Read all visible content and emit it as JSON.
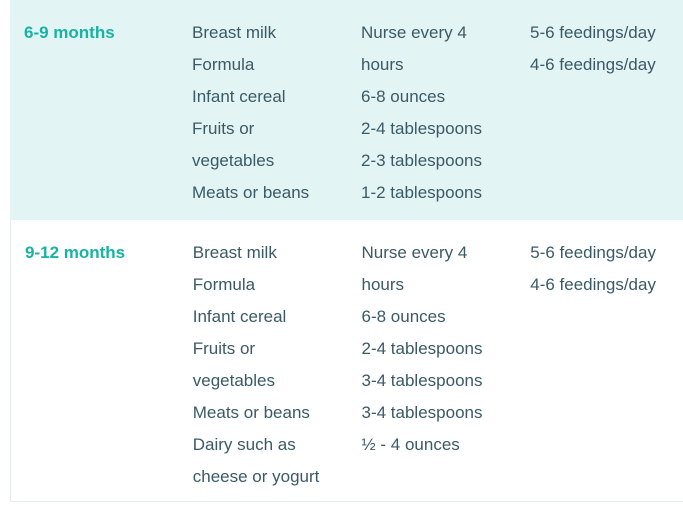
{
  "rows": [
    {
      "age": "6-9 months",
      "foods": [
        "Breast milk",
        "Formula",
        "Infant cereal",
        "Fruits or",
        "vegetables",
        "Meats or beans"
      ],
      "amounts": [
        "Nurse every 4",
        "hours",
        "6-8 ounces",
        "2-4 tablespoons",
        "2-3 tablespoons",
        "1-2 tablespoons"
      ],
      "frequencies": [
        "5-6 feedings/day",
        "4-6 feedings/day"
      ]
    },
    {
      "age": "9-12 months",
      "foods": [
        "Breast milk",
        "Formula",
        "Infant cereal",
        "Fruits or",
        "vegetables",
        "Meats or beans",
        "Dairy such as",
        "cheese or yogurt"
      ],
      "amounts": [
        "Nurse every 4",
        "hours",
        "6-8 ounces",
        "2-4 tablespoons",
        "3-4 tablespoons",
        "3-4 tablespoons",
        "½ - 4 ounces"
      ],
      "frequencies": [
        "5-6 feedings/day",
        "4-6 feedings/day"
      ]
    }
  ],
  "colors": {
    "row_shade": "#e2f4f3",
    "age_text": "#17b3a3",
    "body_text": "#3a5a66"
  }
}
